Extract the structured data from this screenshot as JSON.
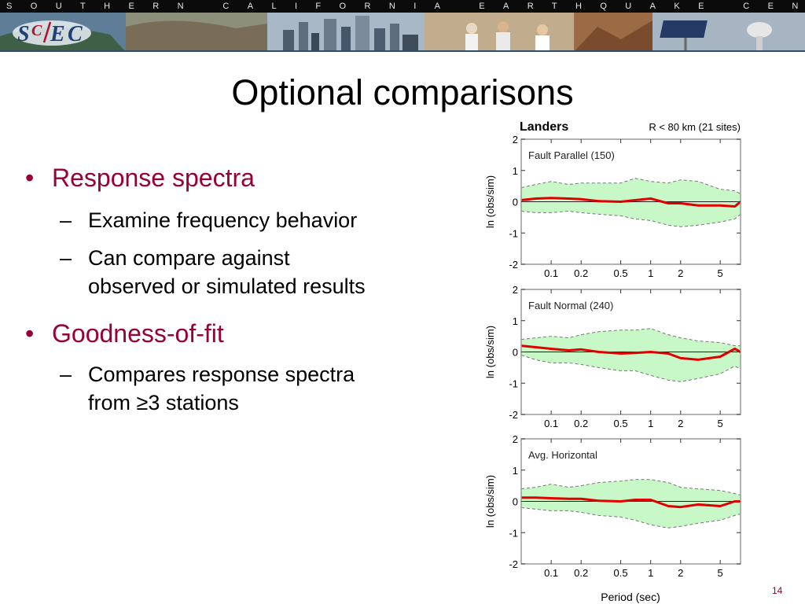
{
  "banner": {
    "title": "SOUTHERN CALIFORNIA EARTHQUAKE CENTER",
    "logo_text": "SCEC"
  },
  "slide": {
    "title": "Optional comparisons",
    "page_number": "14",
    "bullets": [
      {
        "marker": "•",
        "text": "Response spectra",
        "level": 1
      },
      {
        "marker": "–",
        "text": "Examine frequency behavior",
        "level": 2
      },
      {
        "marker": "–",
        "text_lines": [
          "Can compare against",
          "observed or simulated results"
        ],
        "level": 2
      },
      {
        "marker": "•",
        "text": "Goodness-of-fit",
        "level": 1
      },
      {
        "marker": "–",
        "text_lines": [
          "Compares response spectra",
          "from ≥3 stations"
        ],
        "level": 2
      }
    ]
  },
  "figure": {
    "header_title": "Landers",
    "header_note": "R < 80 km (21 sites)",
    "xlabel": "Period (sec)",
    "ylabel": "ln (obs/sim)"
  },
  "chart_data": [
    {
      "type": "line",
      "title": "Fault Parallel (150)",
      "xlabel": "",
      "ylabel": "ln (obs/sim)",
      "xscale": "log",
      "xlim": [
        0.05,
        8
      ],
      "ylim": [
        -2,
        2
      ],
      "xticks": [
        "0.1",
        "0.2",
        "0.5",
        "1",
        "2",
        "5"
      ],
      "yticks": [
        "2",
        "1",
        "0",
        "-1",
        "-2"
      ],
      "period": [
        0.05,
        0.07,
        0.1,
        0.15,
        0.2,
        0.3,
        0.5,
        0.7,
        1,
        1.5,
        2,
        3,
        5,
        7,
        8
      ],
      "series": [
        {
          "name": "mean",
          "values": [
            0.05,
            0.1,
            0.12,
            0.1,
            0.08,
            0.02,
            0.0,
            0.05,
            0.1,
            -0.05,
            -0.05,
            -0.12,
            -0.12,
            -0.15,
            0.0
          ]
        },
        {
          "name": "upper",
          "values": [
            0.45,
            0.55,
            0.65,
            0.55,
            0.6,
            0.6,
            0.6,
            0.75,
            0.65,
            0.6,
            0.7,
            0.65,
            0.4,
            0.35,
            0.25
          ]
        },
        {
          "name": "lower",
          "values": [
            -0.3,
            -0.35,
            -0.35,
            -0.3,
            -0.35,
            -0.4,
            -0.45,
            -0.55,
            -0.6,
            -0.75,
            -0.8,
            -0.75,
            -0.65,
            -0.55,
            -0.4
          ]
        }
      ]
    },
    {
      "type": "line",
      "title": "Fault Normal (240)",
      "xlabel": "",
      "ylabel": "ln (obs/sim)",
      "xscale": "log",
      "xlim": [
        0.05,
        8
      ],
      "ylim": [
        -2,
        2
      ],
      "xticks": [
        "0.1",
        "0.2",
        "0.5",
        "1",
        "2",
        "5"
      ],
      "yticks": [
        "2",
        "1",
        "0",
        "-1",
        "-2"
      ],
      "period": [
        0.05,
        0.07,
        0.1,
        0.15,
        0.2,
        0.3,
        0.5,
        0.7,
        1,
        1.5,
        2,
        3,
        5,
        7,
        8
      ],
      "series": [
        {
          "name": "mean",
          "values": [
            0.2,
            0.15,
            0.1,
            0.05,
            0.08,
            0.0,
            -0.05,
            -0.03,
            0.0,
            -0.05,
            -0.2,
            -0.25,
            -0.15,
            0.1,
            0.0
          ]
        },
        {
          "name": "upper",
          "values": [
            0.4,
            0.45,
            0.5,
            0.45,
            0.55,
            0.65,
            0.7,
            0.7,
            0.75,
            0.55,
            0.45,
            0.35,
            0.3,
            0.2,
            0.2
          ]
        },
        {
          "name": "lower",
          "values": [
            -0.1,
            -0.25,
            -0.35,
            -0.35,
            -0.4,
            -0.5,
            -0.6,
            -0.6,
            -0.75,
            -0.9,
            -0.95,
            -0.85,
            -0.7,
            -0.45,
            -0.55
          ]
        }
      ]
    },
    {
      "type": "line",
      "title": "Avg. Horizontal",
      "xlabel": "Period (sec)",
      "ylabel": "ln (obs/sim)",
      "xscale": "log",
      "xlim": [
        0.05,
        8
      ],
      "ylim": [
        -2,
        2
      ],
      "xticks": [
        "0.1",
        "0.2",
        "0.5",
        "1",
        "2",
        "5"
      ],
      "yticks": [
        "2",
        "1",
        "0",
        "-1",
        "-2"
      ],
      "period": [
        0.05,
        0.07,
        0.1,
        0.15,
        0.2,
        0.3,
        0.5,
        0.7,
        1,
        1.5,
        2,
        3,
        5,
        7,
        8
      ],
      "series": [
        {
          "name": "mean",
          "values": [
            0.12,
            0.12,
            0.1,
            0.08,
            0.08,
            0.02,
            0.0,
            0.05,
            0.05,
            -0.15,
            -0.18,
            -0.1,
            -0.15,
            0.0,
            0.0
          ]
        },
        {
          "name": "upper",
          "values": [
            0.4,
            0.45,
            0.55,
            0.45,
            0.5,
            0.6,
            0.65,
            0.7,
            0.7,
            0.6,
            0.45,
            0.4,
            0.35,
            0.25,
            0.2
          ]
        },
        {
          "name": "lower",
          "values": [
            -0.2,
            -0.25,
            -0.3,
            -0.3,
            -0.35,
            -0.45,
            -0.5,
            -0.6,
            -0.75,
            -0.85,
            -0.8,
            -0.7,
            -0.6,
            -0.45,
            -0.4
          ]
        }
      ]
    }
  ],
  "colors": {
    "accent": "#990033",
    "mean_line": "#e00000",
    "band_fill": "#c8f7c8",
    "band_edge": "#777777",
    "frame": "#9a9a9a"
  }
}
